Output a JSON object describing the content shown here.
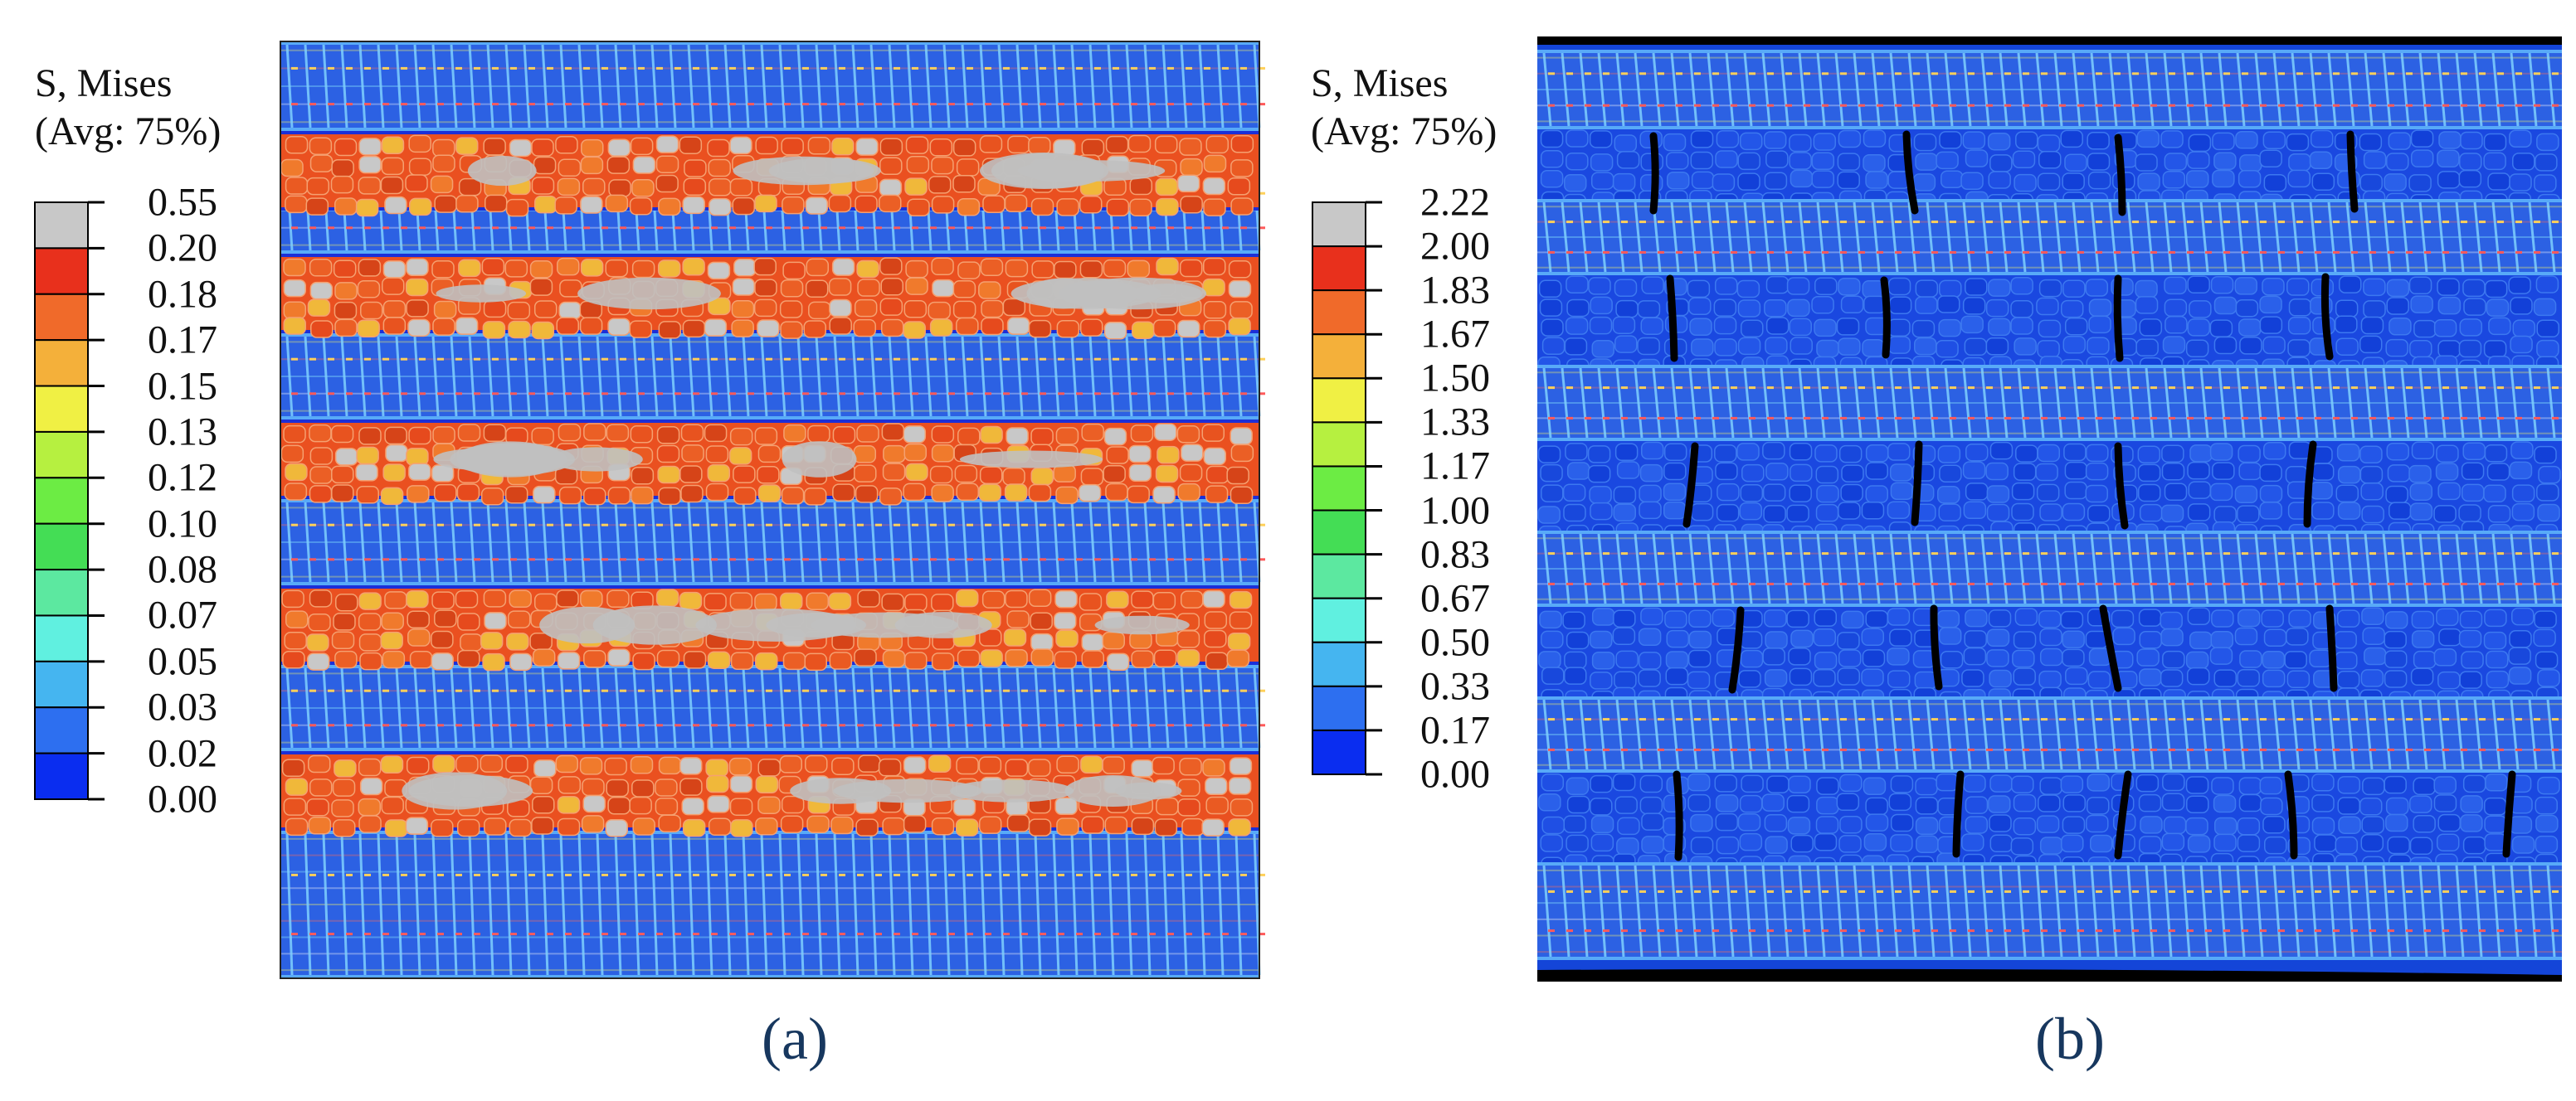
{
  "panel_a": {
    "legend_title_line1": "S, Mises",
    "legend_title_line2": "(Avg: 75%)",
    "legend_values": [
      "0.55",
      "0.20",
      "0.18",
      "0.17",
      "0.15",
      "0.13",
      "0.12",
      "0.10",
      "0.08",
      "0.07",
      "0.05",
      "0.03",
      "0.02",
      "0.00"
    ],
    "caption": "(a)"
  },
  "panel_b": {
    "legend_title_line1": "S, Mises",
    "legend_title_line2": "(Avg: 75%)",
    "legend_values": [
      "2.22",
      "2.00",
      "1.83",
      "1.67",
      "1.50",
      "1.33",
      "1.17",
      "1.00",
      "0.83",
      "0.67",
      "0.50",
      "0.33",
      "0.17",
      "0.00"
    ],
    "caption": "(b)"
  },
  "colors": {
    "contour_bands": [
      "#c8c8c8",
      "#e8301c",
      "#f06a2a",
      "#f4b03a",
      "#f0f044",
      "#b6f040",
      "#6cec44",
      "#44dd55",
      "#5ce8a0",
      "#60f0e0",
      "#45b5f0",
      "#2d6ff0",
      "#0a2df0"
    ],
    "steel_layer": "#2a64e8",
    "rubber_layer_a": "#ea5020",
    "rubber_layer_b": "#1445d8",
    "crack": "#000000",
    "caption": "#17375e"
  }
}
